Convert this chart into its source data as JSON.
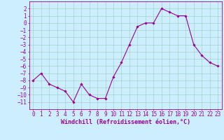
{
  "x": [
    0,
    1,
    2,
    3,
    4,
    5,
    6,
    7,
    8,
    9,
    10,
    11,
    12,
    13,
    14,
    15,
    16,
    17,
    18,
    19,
    20,
    21,
    22,
    23
  ],
  "y": [
    -8,
    -7,
    -8.5,
    -9,
    -9.5,
    -11,
    -8.5,
    -10,
    -10.5,
    -10.5,
    -7.5,
    -5.5,
    -3,
    -0.5,
    0,
    0,
    2,
    1.5,
    1,
    1,
    -3,
    -4.5,
    -5.5,
    -6
  ],
  "line_color": "#990099",
  "marker": "D",
  "markersize": 1.8,
  "linewidth": 0.8,
  "bg_color": "#cceeff",
  "grid_color": "#99ccbb",
  "xlabel": "Windchill (Refroidissement éolien,°C)",
  "xlabel_color": "#990099",
  "xlabel_fontsize": 6.0,
  "xlabel_font": "monospace",
  "tick_color": "#990099",
  "tick_fontsize": 5.5,
  "ylim": [
    -12,
    3
  ],
  "xlim": [
    -0.5,
    23.5
  ],
  "yticks": [
    2,
    1,
    0,
    -1,
    -2,
    -3,
    -4,
    -5,
    -6,
    -7,
    -8,
    -9,
    -10,
    -11
  ],
  "xticks": [
    0,
    1,
    2,
    3,
    4,
    5,
    6,
    7,
    8,
    9,
    10,
    11,
    12,
    13,
    14,
    15,
    16,
    17,
    18,
    19,
    20,
    21,
    22,
    23
  ]
}
